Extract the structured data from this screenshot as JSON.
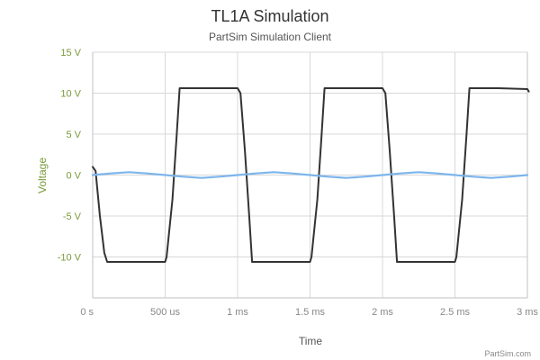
{
  "chart_data": {
    "type": "line",
    "title": "TL1A Simulation",
    "subtitle": "PartSim Simulation Client",
    "xlabel": "Time",
    "ylabel": "Voltage",
    "xlim": [
      0,
      3
    ],
    "x_unit": "ms",
    "ylim": [
      -15,
      15
    ],
    "grid": true,
    "legend": "none",
    "x_ticks": [
      {
        "value": 0,
        "label": "0 s"
      },
      {
        "value": 0.5,
        "label": "500 us"
      },
      {
        "value": 1,
        "label": "1 ms"
      },
      {
        "value": 1.5,
        "label": "1.5 ms"
      },
      {
        "value": 2,
        "label": "2 ms"
      },
      {
        "value": 2.5,
        "label": "2.5 ms"
      },
      {
        "value": 3,
        "label": "3 ms"
      }
    ],
    "y_ticks": [
      {
        "value": 15,
        "label": "15 V"
      },
      {
        "value": 10,
        "label": "10 V"
      },
      {
        "value": 5,
        "label": "5 V"
      },
      {
        "value": 0,
        "label": "0 V"
      },
      {
        "value": -5,
        "label": "-5 V"
      },
      {
        "value": -10,
        "label": "-10 V"
      }
    ],
    "series": [
      {
        "color": "#333333",
        "x": [
          0,
          0.02,
          0.05,
          0.08,
          0.1,
          0.15,
          0.3,
          0.5,
          0.51,
          0.55,
          0.58,
          0.6,
          0.65,
          0.8,
          1.0,
          1.02,
          1.05,
          1.08,
          1.1,
          1.15,
          1.3,
          1.5,
          1.51,
          1.55,
          1.58,
          1.6,
          1.65,
          1.8,
          2.0,
          2.02,
          2.05,
          2.08,
          2.1,
          2.15,
          2.3,
          2.5,
          2.51,
          2.55,
          2.58,
          2.6,
          2.65,
          2.8,
          3.0,
          3.01
        ],
        "y": [
          1.0,
          0.5,
          -5.0,
          -9.5,
          -10.6,
          -10.6,
          -10.6,
          -10.6,
          -10.0,
          -3.0,
          5.0,
          10.6,
          10.6,
          10.6,
          10.6,
          10.0,
          3.0,
          -5.0,
          -10.6,
          -10.6,
          -10.6,
          -10.6,
          -10.0,
          -3.0,
          5.0,
          10.6,
          10.6,
          10.6,
          10.6,
          10.0,
          3.0,
          -5.0,
          -10.6,
          -10.6,
          -10.6,
          -10.6,
          -10.0,
          -3.0,
          5.0,
          10.6,
          10.6,
          10.6,
          10.5,
          10.2
        ]
      },
      {
        "color": "#7cb5ec",
        "x": [
          0,
          0.125,
          0.25,
          0.375,
          0.5,
          0.625,
          0.75,
          0.875,
          1.0,
          1.125,
          1.25,
          1.375,
          1.5,
          1.625,
          1.75,
          1.875,
          2.0,
          2.125,
          2.25,
          2.375,
          2.5,
          2.625,
          2.75,
          2.875,
          3.0
        ],
        "y": [
          0.0,
          0.2,
          0.35,
          0.2,
          0.0,
          -0.2,
          -0.35,
          -0.2,
          0.0,
          0.2,
          0.35,
          0.2,
          0.0,
          -0.2,
          -0.35,
          -0.2,
          0.0,
          0.2,
          0.35,
          0.2,
          0.0,
          -0.2,
          -0.35,
          -0.2,
          0.0
        ]
      }
    ]
  },
  "footer": {
    "credit": "PartSim.com"
  }
}
